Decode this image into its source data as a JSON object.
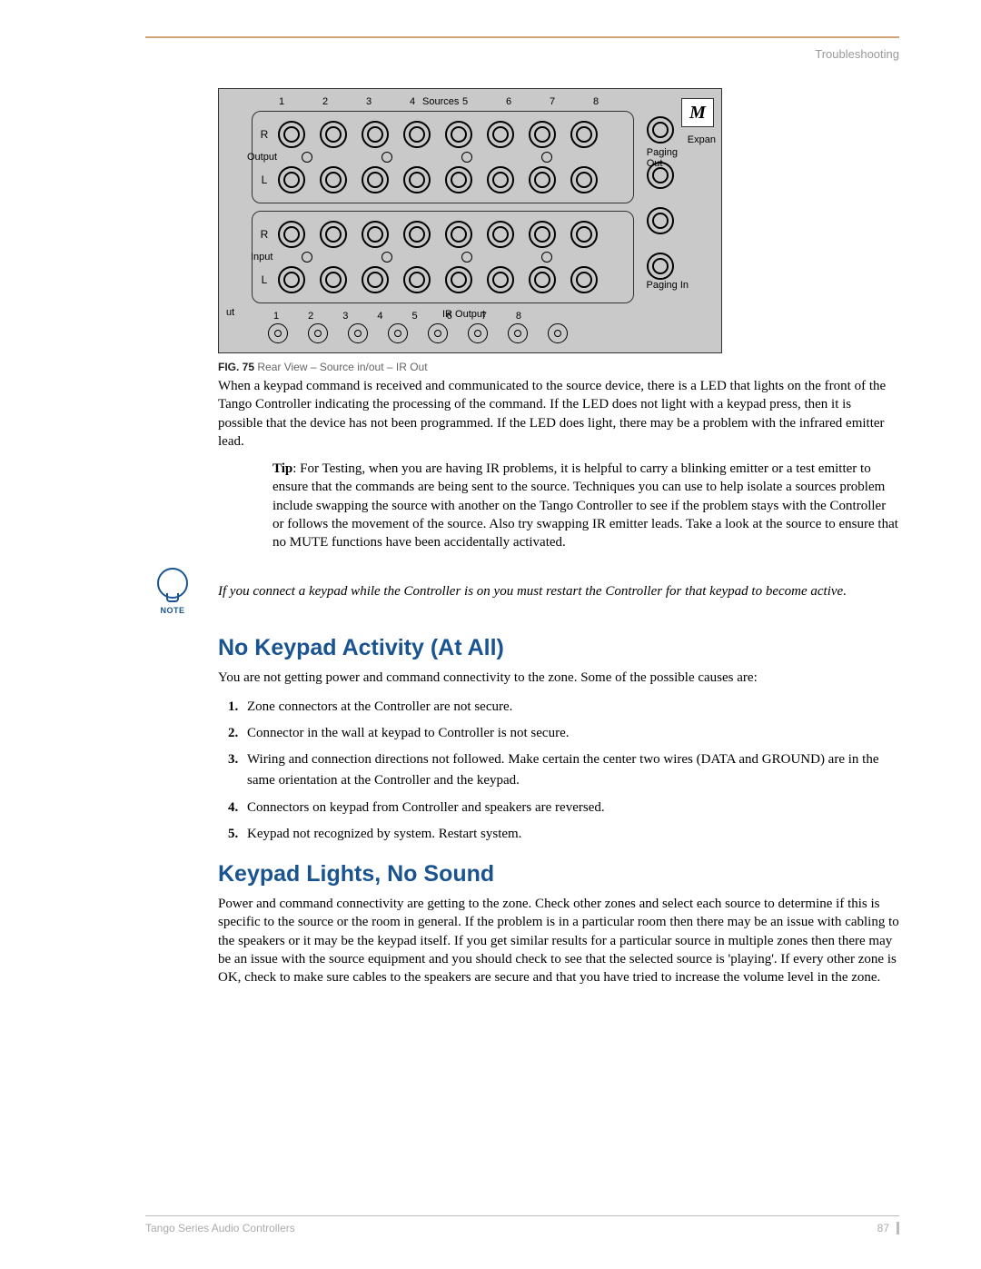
{
  "header": {
    "section_label": "Troubleshooting"
  },
  "figure": {
    "source_numbers": [
      "1",
      "2",
      "3",
      "4",
      "5",
      "6",
      "7",
      "8"
    ],
    "sources_label": "Sources",
    "output_label": "Output",
    "input_label": "Input",
    "r_label": "R",
    "l_label": "L",
    "paging_out": "Paging\nOut",
    "expan": "Expan",
    "paging_in": "Paging In",
    "ir_output_label": "IR Output",
    "ir_numbers": [
      "1",
      "2",
      "3",
      "4",
      "5",
      "6",
      "7",
      "8"
    ],
    "ut_label": "ut",
    "logo_glyph": "M",
    "colors": {
      "panel_bg": "#c9c9c9",
      "line": "#000000"
    }
  },
  "caption": {
    "fig_label": "FIG. 75",
    "text": "Rear View – Source in/out – IR Out"
  },
  "para1": "When a keypad command is received and communicated to the source device, there is a LED that lights on the front of the Tango Controller indicating the processing of the command. If the LED does not light with a keypad press, then it is possible that the device has not been programmed. If the LED does light, there may be a problem with the infrared emitter lead.",
  "tip": {
    "label": "Tip",
    "text": ": For Testing, when you are having IR problems, it is helpful to carry a blinking emitter or a test emitter to ensure that the commands are being sent to the source. Techniques you can use to help isolate a sources problem include swapping the source with another on the Tango Controller to see if the problem stays with the Controller or follows the movement of the source. Also try swapping IR emitter leads. Take a look at the source to ensure that no MUTE functions have been accidentally activated."
  },
  "note": {
    "icon_label": "NOTE",
    "text": "If you connect a keypad while the Controller is on you must restart the Controller for that keypad to become active."
  },
  "heading1": "No Keypad Activity (At All)",
  "para2": "You are not getting power and command connectivity to the zone. Some of the possible causes are:",
  "causes": [
    "Zone connectors at the Controller are not secure.",
    "Connector in the wall at keypad to Controller is not secure.",
    "Wiring and connection directions not followed. Make certain the center two wires (DATA and GROUND) are in the same orientation at the Controller and the keypad.",
    "Connectors on keypad from Controller and speakers are reversed.",
    "Keypad not recognized by system. Restart system."
  ],
  "heading2": "Keypad Lights, No Sound",
  "para3": "Power and command connectivity are getting to the zone. Check other zones and select each source to determine if this is specific to the source or the room in general. If the problem is in a particular room then there may be an issue with cabling to the speakers or it may be the keypad itself. If you get similar results for a particular source in multiple zones then there may be an issue with the source equipment and you should check to see that the selected source is 'playing'. If every other zone is OK, check to make sure cables to the speakers are secure and that you have tried to increase the volume level in the zone.",
  "footer": {
    "doc_title": "Tango Series Audio Controllers",
    "page_number": "87"
  },
  "accent_color": "#1a5490",
  "rule_color": "#d4a373"
}
